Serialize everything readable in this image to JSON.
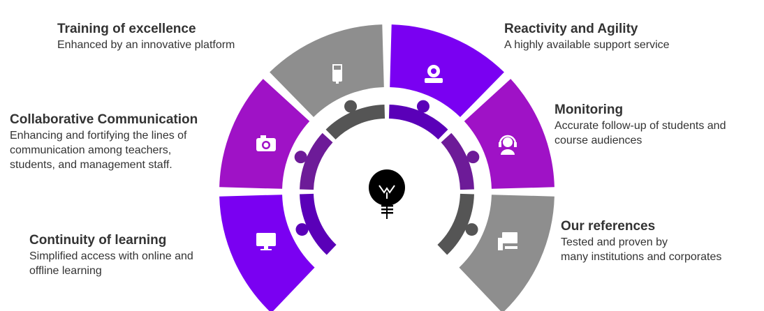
{
  "colors": {
    "violet": "#7a00f2",
    "magenta": "#9f12c6",
    "gray": "#8e8e8e",
    "ring_violet": "#5a00b8",
    "ring_magenta": "#6d1b98",
    "ring_gray": "#555555",
    "bulb": "#000000"
  },
  "segments": [
    {
      "color": "gray",
      "icon": "usb-stick-icon",
      "title": "Training of excellence",
      "description": "Enhanced by an innovative platform"
    },
    {
      "color": "magenta",
      "icon": "camera-icon",
      "title": "Collaborative Communication",
      "description": "Enhancing and fortifying the lines of\ncommunication among teachers,\nstudents, and management staff."
    },
    {
      "color": "violet",
      "icon": "monitor-icon",
      "title": "Continuity of learning",
      "description": "Simplified access with online and\noffline learning"
    },
    {
      "color": "violet",
      "icon": "webcam-icon",
      "title": "Reactivity and Agility",
      "description": " A highly available support service"
    },
    {
      "color": "magenta",
      "icon": "headset-support-icon",
      "title": "Monitoring",
      "description": "Accurate follow-up of students and\ncourse audiences"
    },
    {
      "color": "gray",
      "icon": "desktop-computer-icon",
      "title": "Our references",
      "description": "Tested and proven by\nmany institutions and corporates"
    }
  ],
  "center_icon": "lightbulb-icon"
}
